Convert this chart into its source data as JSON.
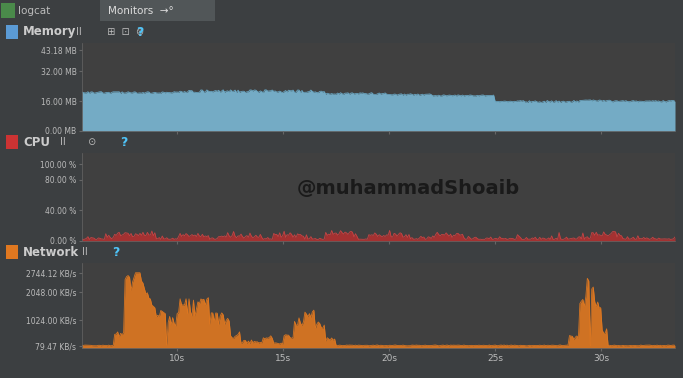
{
  "bg_dark": "#3c3f41",
  "bg_plot": "#404040",
  "bg_header": "#3c3f41",
  "bg_tab_active": "#515658",
  "bg_tab_inactive": "#3c3f41",
  "text_color": "#bbbbbb",
  "title_color": "#cccccc",
  "watermark": "@muhammadShoaib",
  "watermark_color": "#1a1a1a",
  "memory_title": "Memory",
  "memory_yticks": [
    0.0,
    16.0,
    32.0,
    43.18
  ],
  "memory_ylabels": [
    "0.00 MB",
    "16.00 MB",
    "32.00 MB",
    "43.18 MB"
  ],
  "memory_ylim": [
    0,
    47
  ],
  "memory_fill": "#7ab8d4",
  "memory_line": "#6aaac8",
  "cpu_title": "CPU",
  "cpu_yticks": [
    0,
    40,
    80,
    100
  ],
  "cpu_ylabels": [
    "0.00 %",
    "40.00 %",
    "80.00 %",
    "100.00 %"
  ],
  "cpu_ylim": [
    0,
    115
  ],
  "cpu_fill": "#b03030",
  "cpu_line": "#cc4444",
  "network_title": "Network",
  "network_yticks": [
    79.47,
    1024.0,
    2048.0,
    2744.12
  ],
  "network_ylabels": [
    "79.47 KB/s",
    "1024.00 KB/s",
    "2048.00 KB/s",
    "2744.12 KB/s"
  ],
  "network_ylim": [
    0,
    3100
  ],
  "network_fill": "#e07820",
  "network_line": "#e07820",
  "x_ticks": [
    10,
    15,
    20,
    25,
    30
  ],
  "x_labels": [
    "10s",
    "15s",
    "20s",
    "25s",
    "30s"
  ],
  "xlim": [
    5.5,
    33.5
  ],
  "icon_memory": "#5b9bd5",
  "icon_cpu": "#cc3333",
  "icon_network": "#e07820"
}
